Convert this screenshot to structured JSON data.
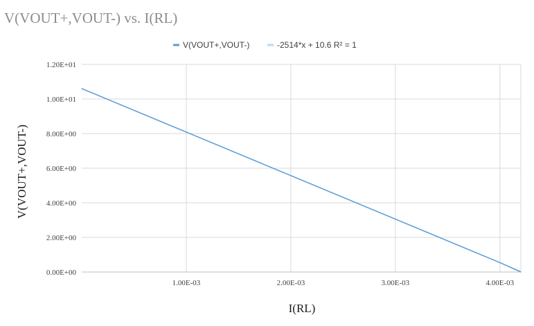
{
  "chart_data": {
    "type": "line",
    "title": "V(VOUT+,VOUT-) vs. I(RL)",
    "xlabel": "I(RL)",
    "ylabel": "V(VOUT+,VOUT-)",
    "xlim": [
      0,
      0.0042
    ],
    "ylim": [
      0,
      12
    ],
    "x_ticks": [
      0.001,
      0.002,
      0.003,
      0.004
    ],
    "x_tick_labels": [
      "1.00E-03",
      "2.00E-03",
      "3.00E-03",
      "4.00E-03"
    ],
    "y_ticks": [
      0,
      2,
      4,
      6,
      8,
      10,
      12
    ],
    "y_tick_labels": [
      "0.00E+00",
      "2.00E+00",
      "4.00E+00",
      "6.00E+00",
      "8.00E+00",
      "1.00E+01",
      "1.20E+01"
    ],
    "grid": true,
    "legend_position": "top",
    "series": [
      {
        "name": "V(VOUT+,VOUT-)",
        "color": "#5b9bd5",
        "x": [
          0,
          0.001,
          0.002,
          0.003,
          0.004,
          0.0042
        ],
        "y": [
          10.6,
          8.086,
          5.572,
          3.058,
          0.544,
          0.0
        ]
      }
    ],
    "trendline": {
      "name": "-2514*x + 10.6 R² = 1",
      "color": "#bdd7ee",
      "slope": -2514,
      "intercept": 10.6
    }
  }
}
